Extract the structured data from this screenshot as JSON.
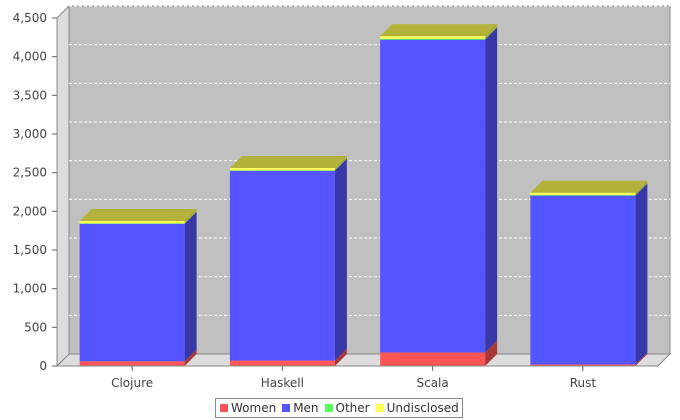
{
  "chart_data": {
    "type": "bar",
    "stacked": true,
    "three_d": true,
    "categories": [
      "Clojure",
      "Haskell",
      "Scala",
      "Rust"
    ],
    "series": [
      {
        "name": "Women",
        "color": "#ff5555",
        "values": [
          60,
          70,
          175,
          20
        ]
      },
      {
        "name": "Men",
        "color": "#5555ff",
        "values": [
          1780,
          2455,
          4045,
          2185
        ]
      },
      {
        "name": "Other",
        "color": "#55ff55",
        "values": [
          5,
          5,
          10,
          5
        ]
      },
      {
        "name": "Undisclosed",
        "color": "#ffff55",
        "values": [
          30,
          30,
          35,
          30
        ]
      }
    ],
    "ylim": [
      0,
      4500
    ],
    "yticks": [
      "0",
      "500",
      "1,000",
      "1,500",
      "2,000",
      "2,500",
      "3,000",
      "3,500",
      "4,000",
      "4,500"
    ],
    "grid": true,
    "legend_position": "bottom"
  },
  "colors": {
    "plot_background": "#c0c0c0",
    "wall": "#dddddd",
    "grid": "#ffffff"
  }
}
